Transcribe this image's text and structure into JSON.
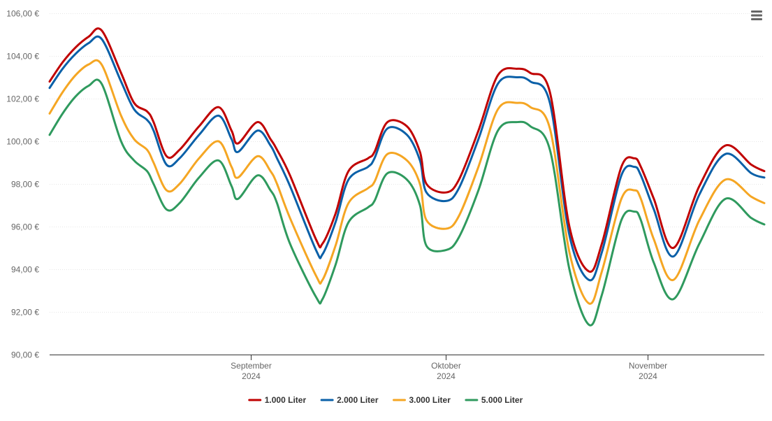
{
  "chart_data": {
    "type": "line",
    "title": "",
    "xlabel": "",
    "ylabel": "",
    "ylim": [
      90,
      106
    ],
    "yticks": [
      {
        "value": 90,
        "label": "90,00 €"
      },
      {
        "value": 92,
        "label": "92,00 €"
      },
      {
        "value": 94,
        "label": "94,00 €"
      },
      {
        "value": 96,
        "label": "96,00 €"
      },
      {
        "value": 98,
        "label": "98,00 €"
      },
      {
        "value": 100,
        "label": "100,00 €"
      },
      {
        "value": 102,
        "label": "102,00 €"
      },
      {
        "value": 104,
        "label": "104,00 €"
      },
      {
        "value": 106,
        "label": "106,00 €"
      }
    ],
    "xlim": [
      "2024-08-01",
      "2024-11-19"
    ],
    "xticks": [
      {
        "date": "2024-09-01",
        "month": "September",
        "year": "2024"
      },
      {
        "date": "2024-10-01",
        "month": "Oktober",
        "year": "2024"
      },
      {
        "date": "2024-11-01",
        "month": "November",
        "year": "2024"
      }
    ],
    "grid": true,
    "legend_position": "bottom",
    "x": [
      "2024-08-01",
      "2024-08-03",
      "2024-08-05",
      "2024-08-07",
      "2024-08-09",
      "2024-08-12",
      "2024-08-14",
      "2024-08-16",
      "2024-08-17",
      "2024-08-19",
      "2024-08-21",
      "2024-08-24",
      "2024-08-27",
      "2024-08-29",
      "2024-08-30",
      "2024-09-02",
      "2024-09-04",
      "2024-09-05",
      "2024-09-07",
      "2024-09-11",
      "2024-09-12",
      "2024-09-14",
      "2024-09-16",
      "2024-09-19",
      "2024-09-20",
      "2024-09-22",
      "2024-09-25",
      "2024-09-27",
      "2024-09-28",
      "2024-10-01",
      "2024-10-03",
      "2024-10-06",
      "2024-10-09",
      "2024-10-12",
      "2024-10-14",
      "2024-10-17",
      "2024-10-20",
      "2024-10-23",
      "2024-10-25",
      "2024-10-28",
      "2024-10-30",
      "2024-10-31",
      "2024-11-02",
      "2024-11-05",
      "2024-11-09",
      "2024-11-13",
      "2024-11-17",
      "2024-11-19"
    ],
    "series": [
      {
        "name": "1.000 Liter",
        "color": "#c00000",
        "values": [
          102.8,
          103.7,
          104.4,
          104.9,
          105.2,
          103.2,
          101.8,
          101.4,
          100.9,
          99.3,
          99.6,
          100.7,
          101.6,
          100.5,
          99.9,
          100.9,
          100.1,
          99.6,
          98.4,
          95.4,
          95.2,
          96.6,
          98.6,
          99.2,
          99.5,
          100.9,
          100.7,
          99.5,
          98.0,
          97.6,
          98.2,
          100.5,
          103.1,
          103.4,
          103.2,
          102.3,
          96.0,
          93.9,
          95.2,
          98.8,
          99.2,
          98.8,
          97.3,
          95.0,
          97.9,
          99.8,
          98.9,
          98.6
        ]
      },
      {
        "name": "2.000 Liter",
        "color": "#0a60a8",
        "values": [
          102.5,
          103.4,
          104.1,
          104.6,
          104.8,
          102.8,
          101.5,
          101.0,
          100.5,
          98.9,
          99.2,
          100.3,
          101.2,
          100.1,
          99.5,
          100.5,
          99.8,
          99.2,
          97.9,
          94.9,
          94.7,
          96.2,
          98.2,
          98.8,
          99.2,
          100.6,
          100.3,
          99.1,
          97.6,
          97.2,
          97.8,
          100.1,
          102.7,
          103.0,
          102.8,
          101.8,
          95.6,
          93.5,
          94.8,
          98.4,
          98.8,
          98.4,
          96.8,
          94.6,
          97.5,
          99.4,
          98.5,
          98.3
        ]
      },
      {
        "name": "3.000 Liter",
        "color": "#f5a623",
        "values": [
          101.3,
          102.3,
          103.1,
          103.6,
          103.6,
          101.2,
          100.1,
          99.6,
          99.0,
          97.7,
          98.0,
          99.2,
          100.0,
          98.8,
          98.3,
          99.3,
          98.6,
          98.0,
          96.4,
          93.7,
          93.5,
          95.1,
          97.1,
          97.8,
          98.1,
          99.4,
          99.1,
          98.0,
          96.3,
          95.9,
          96.5,
          98.8,
          101.5,
          101.8,
          101.6,
          100.6,
          94.8,
          92.4,
          93.9,
          97.3,
          97.7,
          97.3,
          95.4,
          93.5,
          96.3,
          98.2,
          97.4,
          97.1
        ]
      },
      {
        "name": "5.000 Liter",
        "color": "#2f9a5e",
        "values": [
          100.3,
          101.3,
          102.1,
          102.6,
          102.7,
          100.0,
          99.1,
          98.6,
          98.0,
          96.8,
          97.1,
          98.3,
          99.1,
          97.9,
          97.3,
          98.4,
          97.7,
          97.1,
          95.2,
          92.7,
          92.6,
          94.2,
          96.2,
          96.9,
          97.2,
          98.5,
          98.2,
          97.0,
          95.1,
          94.9,
          95.5,
          97.7,
          100.5,
          100.9,
          100.7,
          99.6,
          94.0,
          91.4,
          92.8,
          96.3,
          96.7,
          96.3,
          94.3,
          92.6,
          95.2,
          97.3,
          96.4,
          96.1
        ]
      }
    ]
  },
  "menu_icon": "hamburger-menu-icon"
}
